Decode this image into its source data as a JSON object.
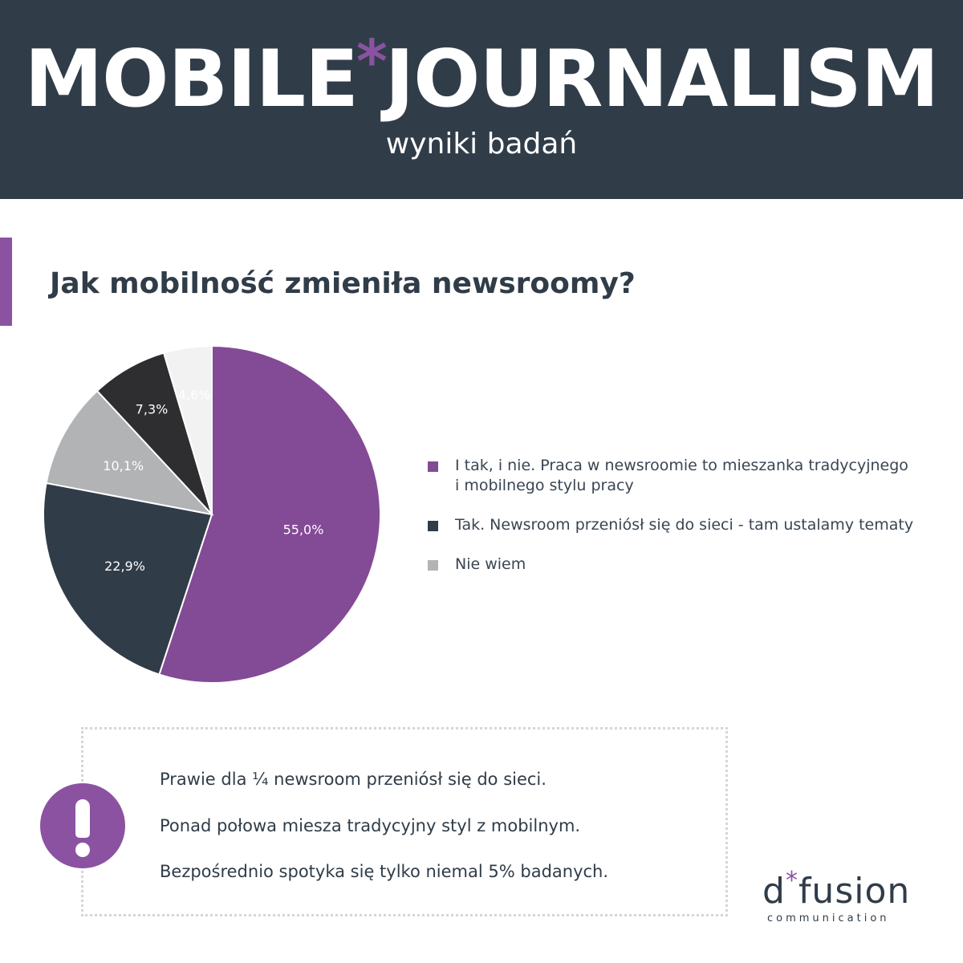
{
  "header": {
    "title_part1": "MOBILE",
    "title_asterisk": "*",
    "title_part2": "JOURNALISM",
    "subtitle": "wyniki badań"
  },
  "question": "Jak mobilność zmieniła newsroomy?",
  "chart_data": {
    "type": "pie",
    "slices": [
      {
        "label": "I tak, i nie. Praca w newsroomie to mieszanka tradycyjnego i mobilnego stylu pracy",
        "value": 55.0,
        "value_label": "55,0%",
        "color": "#834a96"
      },
      {
        "label": "",
        "value": 22.9,
        "value_label": "22,9%",
        "color": "#303c48"
      },
      {
        "label": "",
        "value": 10.1,
        "value_label": "10,1%",
        "color": "#b2b3b4"
      },
      {
        "label": "",
        "value": 7.3,
        "value_label": "7,3%",
        "color": "#2e2d2f"
      },
      {
        "label": "",
        "value": 4.6,
        "value_label": "4,6%",
        "color": "#f2f2f2"
      }
    ],
    "legend": [
      {
        "text_line1": "I tak, i nie. Praca w newsroomie to mieszanka tradycyjnego",
        "text_line2": "i mobilnego stylu pracy",
        "color": "#834a96"
      },
      {
        "text_line1": "Tak. Newsroom przeniósł się do sieci - tam ustalamy tematy",
        "text_line2": "",
        "color": "#303c48"
      },
      {
        "text_line1": "Nie wiem",
        "text_line2": "",
        "color": "#b2b3b4"
      }
    ]
  },
  "notes": [
    "Prawie dla ¼ newsroom przeniósł się do sieci.",
    "Ponad połowa miesza tradycyjny styl z mobilnym.",
    "Bezpośrednio spotyka się tylko niemal 5% badanych."
  ],
  "logo": {
    "main_left": "d",
    "main_asterisk": "*",
    "main_right": "fusion",
    "sub": "communication"
  },
  "icons": {
    "alert": "exclamation-icon"
  }
}
